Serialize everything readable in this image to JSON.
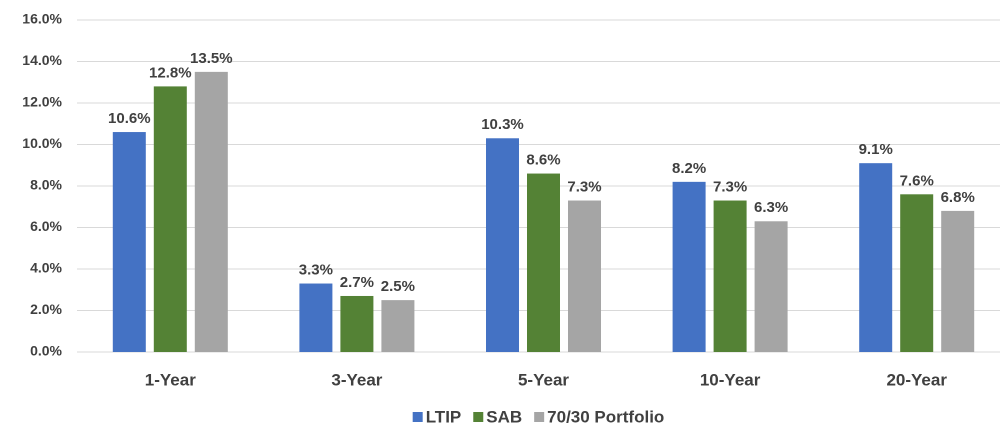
{
  "chart_data": {
    "type": "bar",
    "categories": [
      "1-Year",
      "3-Year",
      "5-Year",
      "10-Year",
      "20-Year"
    ],
    "series": [
      {
        "name": "LTIP",
        "color": "#4472c4",
        "values": [
          10.6,
          3.3,
          10.3,
          8.2,
          9.1
        ],
        "value_labels": [
          "10.6%",
          "3.3%",
          "10.3%",
          "8.2%",
          "9.1%"
        ]
      },
      {
        "name": "SAB",
        "color": "#548235",
        "values": [
          12.8,
          2.7,
          8.6,
          7.3,
          7.6
        ],
        "value_labels": [
          "12.8%",
          "2.7%",
          "8.6%",
          "7.3%",
          "7.6%"
        ]
      },
      {
        "name": "70/30 Portfolio",
        "color": "#a5a5a5",
        "values": [
          13.5,
          2.5,
          7.3,
          6.3,
          6.8
        ],
        "value_labels": [
          "13.5%",
          "2.5%",
          "7.3%",
          "6.3%",
          "6.8%"
        ]
      }
    ],
    "ylim": [
      0,
      16
    ],
    "yticks": [
      {
        "value": 0,
        "label": "0.0%"
      },
      {
        "value": 2,
        "label": "2.0%"
      },
      {
        "value": 4,
        "label": "4.0%"
      },
      {
        "value": 6,
        "label": "6.0%"
      },
      {
        "value": 8,
        "label": "8.0%"
      },
      {
        "value": 10,
        "label": "10.0%"
      },
      {
        "value": 12,
        "label": "12.0%"
      },
      {
        "value": 14,
        "label": "14.0%"
      },
      {
        "value": 16,
        "label": "16.0%"
      }
    ],
    "grid": true,
    "legend": "bottom"
  }
}
